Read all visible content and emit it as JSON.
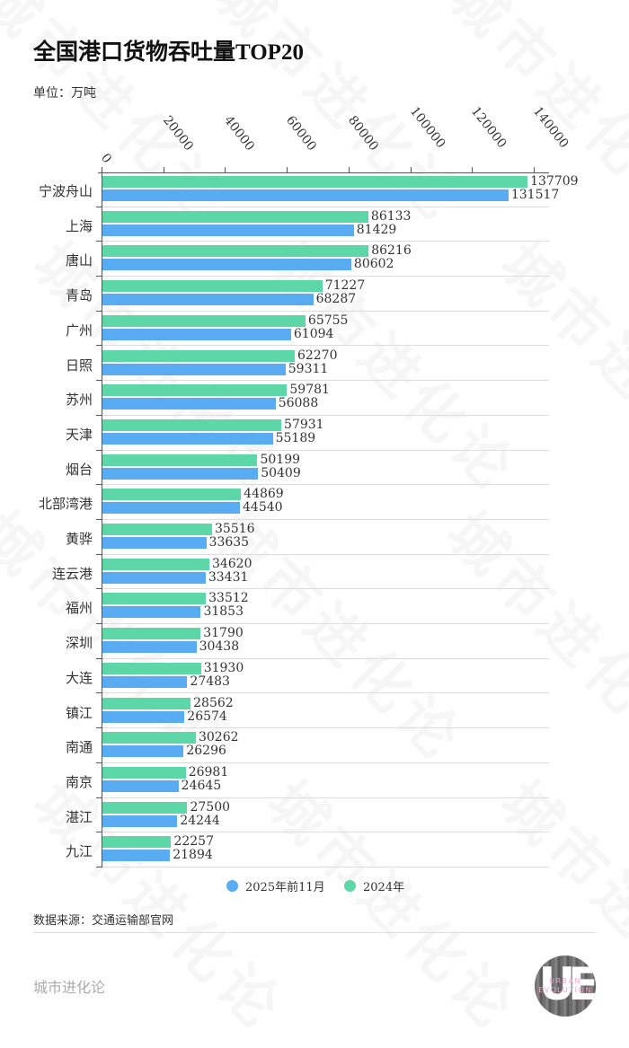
{
  "header": {
    "title": "全国港口货物吞吐量TOP20",
    "unit": "单位：万吨"
  },
  "chart_data": {
    "type": "bar",
    "orientation": "horizontal",
    "title": "全国港口货物吞吐量TOP20",
    "unit": "万吨",
    "xlabel": "",
    "ylabel": "",
    "xlim": [
      0,
      140000
    ],
    "x_ticks": [
      0,
      20000,
      40000,
      60000,
      80000,
      100000,
      120000,
      140000
    ],
    "x_tick_labels": [
      "0",
      "20000",
      "40000",
      "60000",
      "80000",
      "100000",
      "120000",
      "140000"
    ],
    "axis_position": "top",
    "legend_position": "bottom",
    "grid": "horizontal row separators",
    "categories": [
      "宁波舟山",
      "上海",
      "唐山",
      "青岛",
      "广州",
      "日照",
      "苏州",
      "天津",
      "烟台",
      "北部湾港",
      "黄骅",
      "连云港",
      "福州",
      "深圳",
      "大连",
      "镇江",
      "南通",
      "南京",
      "湛江",
      "九江"
    ],
    "series": [
      {
        "name": "2024年",
        "color": "#5dd6a8",
        "values": [
          137709,
          86133,
          86216,
          71227,
          65755,
          62270,
          59781,
          57931,
          50199,
          44869,
          35516,
          34620,
          33512,
          31790,
          31930,
          28562,
          30262,
          26981,
          27500,
          22257
        ]
      },
      {
        "name": "2025年前11月",
        "color": "#5aacf2",
        "values": [
          131517,
          81429,
          80602,
          68287,
          61094,
          59311,
          56088,
          55189,
          50409,
          44540,
          33635,
          33431,
          31853,
          30438,
          27483,
          26574,
          26296,
          24645,
          24244,
          21894
        ]
      }
    ]
  },
  "legend": {
    "items": [
      {
        "label": "2025年前11月",
        "color": "#5aacf2"
      },
      {
        "label": "2024年",
        "color": "#5dd6a8"
      }
    ]
  },
  "footer": {
    "source": "数据来源：交通运输部官网",
    "brand": "城市进化论",
    "logo_letters": "UE",
    "logo_line1": "URBAN",
    "logo_line2": "EVOLUTION"
  },
  "watermark": {
    "text": "城市进化论",
    "sub": "URBAN EVOLUTION"
  }
}
